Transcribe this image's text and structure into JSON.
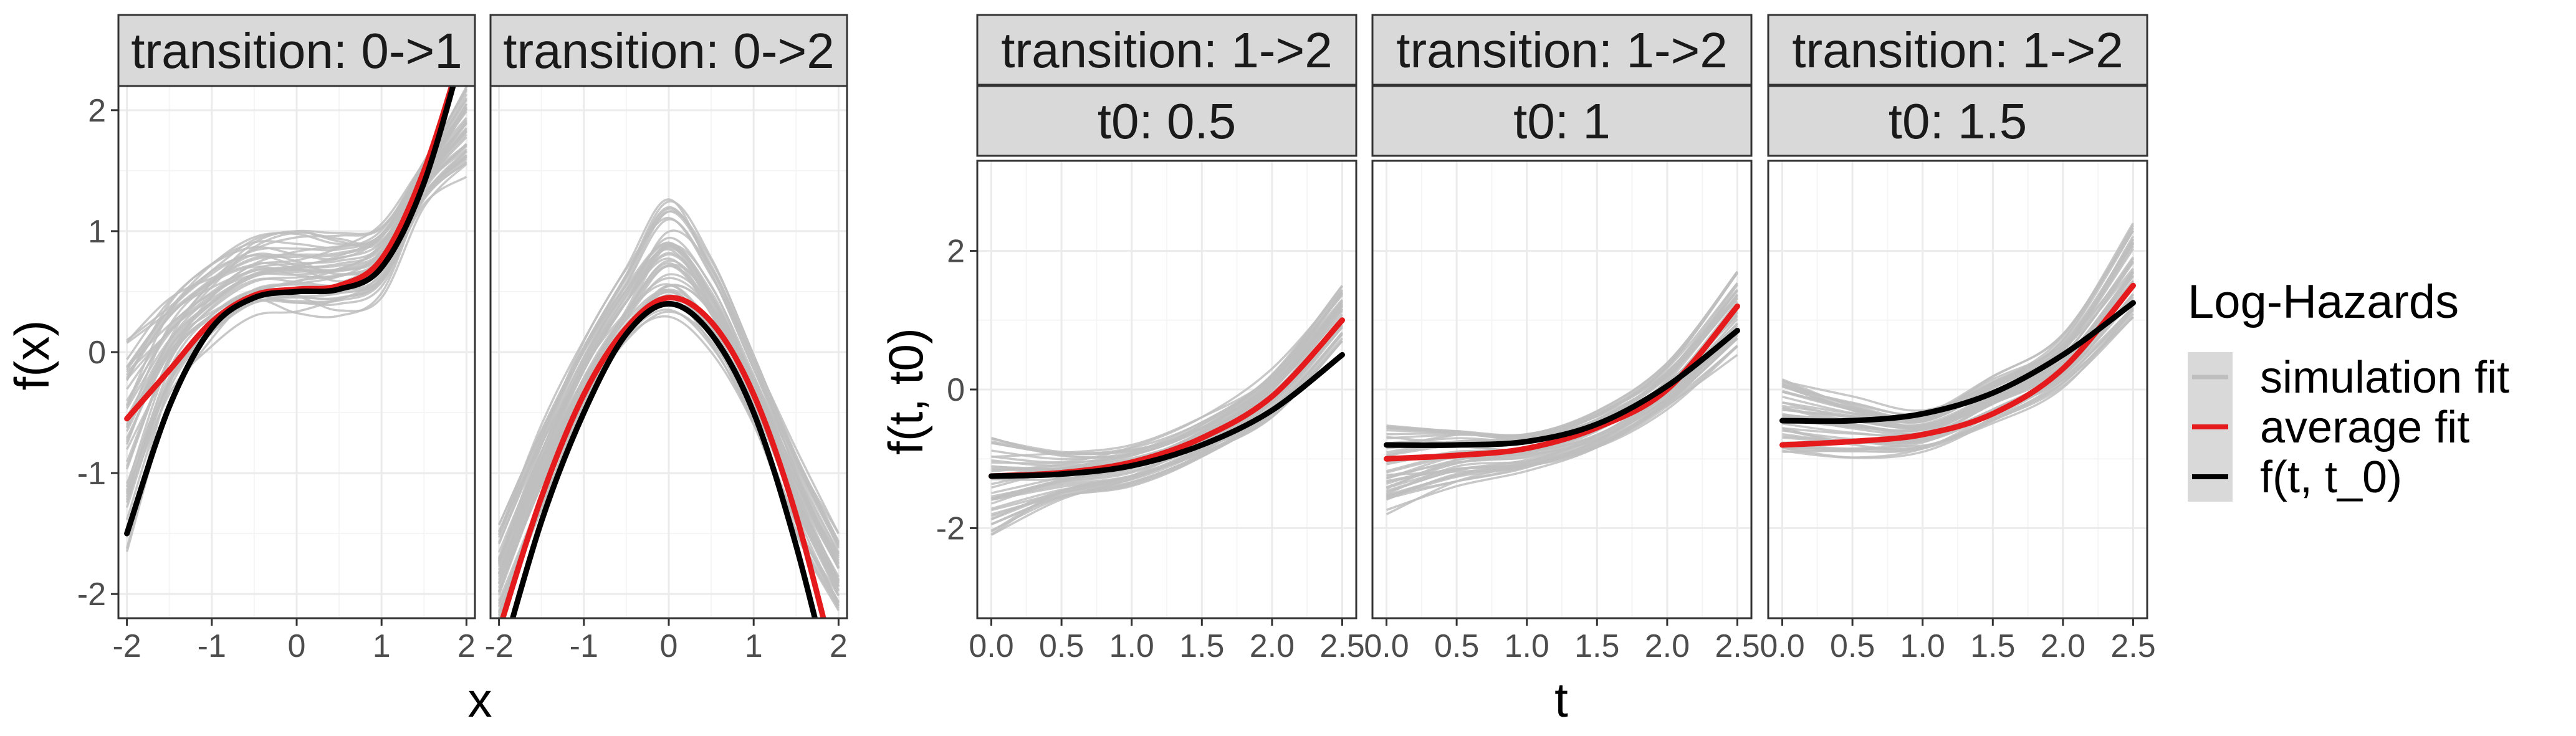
{
  "chart_data": [
    {
      "type": "line",
      "layout": "two faceted panels sharing the y axis",
      "xlabel": "x",
      "ylabel": "f(x)",
      "xlim": [
        -2.1,
        2.1
      ],
      "ylim": [
        -2.2,
        2.2
      ],
      "x_ticks": [
        -2,
        -1,
        0,
        1,
        2
      ],
      "x_tick_labels": [
        "-2",
        "-1",
        "0",
        "1",
        "2"
      ],
      "y_ticks": [
        -2,
        -1,
        0,
        1,
        2
      ],
      "y_tick_labels": [
        "-2",
        "-1",
        "0",
        "1",
        "2"
      ],
      "grid": true,
      "panels": [
        {
          "strip": [
            "transition: 0->1"
          ],
          "simulation_fit_band": {
            "x": [
              -2,
              -1.5,
              -1,
              -0.5,
              0,
              0.5,
              1,
              1.5,
              2
            ],
            "low": [
              -1.65,
              -0.45,
              0.05,
              0.3,
              0.3,
              0.3,
              0.45,
              1.2,
              1.45
            ],
            "high": [
              0.25,
              0.5,
              0.75,
              0.95,
              1.0,
              1.0,
              1.1,
              1.6,
              2.2
            ]
          },
          "series": [
            {
              "name": "average fit",
              "x": [
                -2,
                -1.5,
                -1,
                -0.5,
                0,
                0.5,
                1,
                1.5,
                2
              ],
              "y": [
                -0.55,
                -0.15,
                0.25,
                0.47,
                0.52,
                0.55,
                0.77,
                1.5,
                2.6
              ]
            },
            {
              "name": "f(t, t_0)",
              "x": [
                -2,
                -1.5,
                -1,
                -0.5,
                0,
                0.5,
                1,
                1.5,
                2
              ],
              "y": [
                -1.5,
                -0.45,
                0.2,
                0.45,
                0.5,
                0.52,
                0.7,
                1.4,
                2.6
              ]
            }
          ]
        },
        {
          "strip": [
            "transition: 0->2"
          ],
          "simulation_fit_band": {
            "x": [
              -2,
              -1.5,
              -1,
              -0.5,
              0,
              0.5,
              1,
              1.5,
              2
            ],
            "low": [
              -2.2,
              -1.3,
              -0.5,
              0.0,
              0.2,
              0.0,
              -0.6,
              -1.5,
              -2.2
            ],
            "high": [
              -1.4,
              -0.6,
              0.1,
              0.7,
              1.3,
              0.8,
              0.0,
              -0.8,
              -1.5
            ]
          },
          "series": [
            {
              "name": "average fit",
              "x": [
                -2,
                -1.5,
                -1,
                -0.5,
                0,
                0.5,
                1,
                1.5,
                2
              ],
              "y": [
                -2.3,
                -1.2,
                -0.35,
                0.2,
                0.45,
                0.25,
                -0.35,
                -1.35,
                -2.7
              ]
            },
            {
              "name": "f(t, t_0)",
              "x": [
                -2,
                -1.5,
                -1,
                -0.5,
                0,
                0.5,
                1,
                1.5,
                2
              ],
              "y": [
                -2.6,
                -1.4,
                -0.5,
                0.15,
                0.4,
                0.15,
                -0.5,
                -1.6,
                -3.0
              ]
            }
          ]
        }
      ]
    },
    {
      "type": "line",
      "layout": "three faceted panels sharing the y axis",
      "xlabel": "t",
      "ylabel": "f(t, t0)",
      "xlim": [
        -0.1,
        2.6
      ],
      "ylim": [
        -3.3,
        3.3
      ],
      "x_ticks": [
        0,
        0.5,
        1,
        1.5,
        2,
        2.5
      ],
      "x_tick_labels": [
        "0.0",
        "0.5",
        "1.0",
        "1.5",
        "2.0",
        "2.5"
      ],
      "y_ticks": [
        -2,
        0,
        2
      ],
      "y_tick_labels": [
        "-2",
        "0",
        "2"
      ],
      "grid": true,
      "panels": [
        {
          "strip": [
            "transition: 1->2",
            "t0: 0.5"
          ],
          "simulation_fit_band": {
            "x": [
              0,
              0.5,
              1,
              1.5,
              2,
              2.5
            ],
            "low": [
              -2.1,
              -1.6,
              -1.4,
              -1.0,
              -0.4,
              0.7
            ],
            "high": [
              -0.7,
              -0.9,
              -0.8,
              -0.4,
              0.3,
              1.5
            ]
          },
          "series": [
            {
              "name": "average fit",
              "x": [
                0,
                0.5,
                1,
                1.5,
                2,
                2.5
              ],
              "y": [
                -1.25,
                -1.2,
                -1.05,
                -0.7,
                -0.1,
                1.0
              ]
            },
            {
              "name": "f(t, t_0)",
              "x": [
                0,
                0.5,
                1,
                1.5,
                2,
                2.5
              ],
              "y": [
                -1.25,
                -1.22,
                -1.1,
                -0.8,
                -0.3,
                0.5
              ]
            }
          ]
        },
        {
          "strip": [
            "transition: 1->2",
            "t0: 1"
          ],
          "simulation_fit_band": {
            "x": [
              0,
              0.5,
              1,
              1.5,
              2,
              2.5
            ],
            "low": [
              -1.8,
              -1.4,
              -1.2,
              -0.9,
              -0.3,
              0.5
            ],
            "high": [
              -0.4,
              -0.5,
              -0.6,
              -0.3,
              0.4,
              1.8
            ]
          },
          "series": [
            {
              "name": "average fit",
              "x": [
                0,
                0.5,
                1,
                1.5,
                2,
                2.5
              ],
              "y": [
                -1.0,
                -0.95,
                -0.85,
                -0.55,
                0.0,
                1.2
              ]
            },
            {
              "name": "f(t, t_0)",
              "x": [
                0,
                0.5,
                1,
                1.5,
                2,
                2.5
              ],
              "y": [
                -0.8,
                -0.8,
                -0.75,
                -0.5,
                0.05,
                0.85
              ]
            }
          ]
        },
        {
          "strip": [
            "transition: 1->2",
            "t0: 1.5"
          ],
          "simulation_fit_band": {
            "x": [
              0,
              0.5,
              1,
              1.5,
              2,
              2.5
            ],
            "low": [
              -1.0,
              -1.0,
              -0.9,
              -0.5,
              0.0,
              0.9
            ],
            "high": [
              0.2,
              -0.1,
              -0.3,
              0.2,
              0.8,
              2.4
            ]
          },
          "series": [
            {
              "name": "average fit",
              "x": [
                0,
                0.5,
                1,
                1.5,
                2,
                2.5
              ],
              "y": [
                -0.8,
                -0.75,
                -0.65,
                -0.35,
                0.3,
                1.5
              ]
            },
            {
              "name": "f(t, t_0)",
              "x": [
                0,
                0.5,
                1,
                1.5,
                2,
                2.5
              ],
              "y": [
                -0.45,
                -0.45,
                -0.35,
                -0.05,
                0.5,
                1.25
              ]
            }
          ]
        }
      ]
    }
  ],
  "legend": {
    "title": "Log-Hazards",
    "entries": [
      {
        "label": "simulation fit",
        "color": "#bebebe"
      },
      {
        "label": "average fit",
        "color": "#e41a1c"
      },
      {
        "label": "f(t, t_0)",
        "color": "#000000"
      }
    ],
    "key_background": "#d9d9d9"
  },
  "colors": {
    "panel_border": "#333333",
    "strip_background": "#d9d9d9",
    "grid_major": "#ebebeb",
    "grid_minor": "#f5f5f5"
  }
}
